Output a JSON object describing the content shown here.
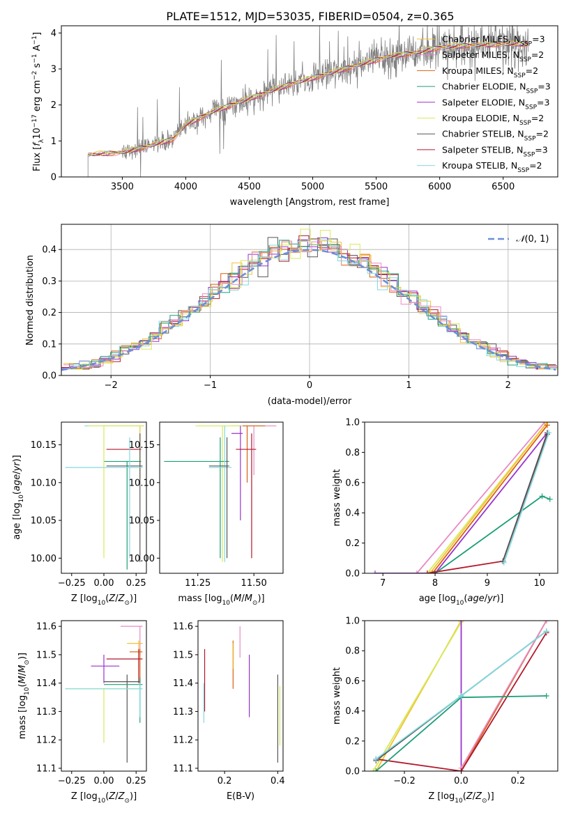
{
  "figure_title": "PLATE=1512, MJD=53035, FIBERID=0504, z=0.365",
  "colors": [
    "#f2c230",
    "#e78ac3",
    "#d95f0e",
    "#1b9e77",
    "#9932cc",
    "#d6e95a",
    "#555555",
    "#b2182b",
    "#80d9e0"
  ],
  "legend_models": [
    {
      "label": "Chabrier MILES, N",
      "nssp": "3"
    },
    {
      "label": "Salpeter MILES, N",
      "nssp": "2"
    },
    {
      "label": "Kroupa MILES, N",
      "nssp": "2"
    },
    {
      "label": "Chabrier ELODIE, N",
      "nssp": "3"
    },
    {
      "label": "Salpeter ELODIE, N",
      "nssp": "3"
    },
    {
      "label": "Kroupa ELODIE, N",
      "nssp": "2"
    },
    {
      "label": "Chabrier STELIB, N",
      "nssp": "2"
    },
    {
      "label": "Salpeter STELIB, N",
      "nssp": "3"
    },
    {
      "label": "Kroupa STELIB, N",
      "nssp": "2"
    }
  ],
  "chart_data": [
    {
      "id": "spectrum",
      "type": "line",
      "xlabel": "wavelength [Angstrom, rest frame]",
      "ylabel": "Flux [f_λ 10^-17 erg cm^-2 s^-1 A^-1]",
      "xlim": [
        3020,
        6930
      ],
      "ylim": [
        0,
        4.2
      ],
      "xticks": [
        3500,
        4000,
        4500,
        5000,
        5500,
        6000,
        6500
      ],
      "yticks": [
        0,
        1,
        2,
        3,
        4
      ],
      "data_color": "#808080",
      "continuum": [
        [
          3230,
          0.62
        ],
        [
          3500,
          0.68
        ],
        [
          3700,
          0.85
        ],
        [
          3900,
          1.05
        ],
        [
          4000,
          1.45
        ],
        [
          4200,
          1.8
        ],
        [
          4400,
          2.05
        ],
        [
          4600,
          2.3
        ],
        [
          4800,
          2.55
        ],
        [
          5000,
          2.75
        ],
        [
          5200,
          2.95
        ],
        [
          5400,
          3.15
        ],
        [
          5600,
          3.35
        ],
        [
          5800,
          3.45
        ],
        [
          6000,
          3.6
        ],
        [
          6200,
          3.65
        ],
        [
          6400,
          3.68
        ],
        [
          6650,
          3.7
        ]
      ],
      "grid": false,
      "legend": "upper-right"
    },
    {
      "id": "residuals",
      "type": "line",
      "xlabel": "(data-model)/error",
      "ylabel": "Normed distribution",
      "xlim": [
        -2.5,
        2.5
      ],
      "ylim": [
        0,
        0.48
      ],
      "xticks": [
        -2,
        -1,
        0,
        1,
        2
      ],
      "yticks": [
        0.0,
        0.1,
        0.2,
        0.3,
        0.4
      ],
      "reference_curve": {
        "name": "N(0,1)",
        "mu": 0,
        "sigma": 1,
        "color": "#6a8fd8"
      },
      "grid": true,
      "legend": "upper-right"
    },
    {
      "id": "age-vs-Z",
      "type": "scatter",
      "xlabel": "Z [log10(Z/Z⊙)]",
      "ylabel": "age  [log10(age/yr)]",
      "xlim": [
        -0.33,
        0.33
      ],
      "ylim": [
        9.98,
        10.18
      ],
      "xticks": [
        -0.25,
        0.0,
        0.25
      ],
      "yticks": [
        10.0,
        10.05,
        10.1,
        10.15
      ],
      "crosses": [
        {
          "x": 0.18,
          "y": 10.175,
          "xlo": -0.15,
          "xhi": 0.3,
          "ylo": 10.175,
          "yhi": 10.175,
          "c": 8
        },
        {
          "x": 0.28,
          "y": 10.175,
          "xlo": 0.0,
          "xhi": 0.31,
          "ylo": 10.105,
          "yhi": 10.175,
          "c": 0
        },
        {
          "x": 0.23,
          "y": 10.144,
          "xlo": 0.02,
          "xhi": 0.29,
          "ylo": 10.144,
          "yhi": 10.144,
          "c": 7
        },
        {
          "x": 0.18,
          "y": 10.128,
          "xlo": 0.0,
          "xhi": 0.29,
          "ylo": 9.985,
          "yhi": 10.128,
          "c": 3
        },
        {
          "x": 0.28,
          "y": 10.122,
          "xlo": 0.02,
          "xhi": 0.3,
          "ylo": 9.995,
          "yhi": 10.165,
          "c": 6
        },
        {
          "x": 0.2,
          "y": 10.12,
          "xlo": -0.3,
          "xhi": 0.3,
          "ylo": 10.0,
          "yhi": 10.16,
          "c": 8
        },
        {
          "x": 0.0,
          "y": 10.175,
          "xlo": -0.12,
          "xhi": 0.3,
          "ylo": 10.0,
          "yhi": 10.175,
          "c": 5
        }
      ]
    },
    {
      "id": "age-vs-mass",
      "type": "scatter",
      "xlabel": "mass [log10(M/M⊙)]",
      "ylabel": "",
      "xlim": [
        11.08,
        11.63
      ],
      "ylim": [
        9.98,
        10.18
      ],
      "xticks": [
        11.25,
        11.5
      ],
      "yticks": [
        10.0,
        10.05,
        10.1,
        10.15
      ],
      "crosses": [
        {
          "x": 11.5,
          "y": 10.175,
          "xlo": 11.4,
          "xhi": 11.6,
          "ylo": 10.11,
          "yhi": 10.175,
          "c": 1
        },
        {
          "x": 11.47,
          "y": 10.175,
          "xlo": 11.45,
          "xhi": 11.55,
          "ylo": 10.1,
          "yhi": 10.175,
          "c": 2
        },
        {
          "x": 11.36,
          "y": 10.175,
          "xlo": 11.24,
          "xhi": 11.45,
          "ylo": 9.995,
          "yhi": 10.175,
          "c": 5
        },
        {
          "x": 11.44,
          "y": 10.165,
          "xlo": 11.4,
          "xhi": 11.45,
          "ylo": 10.05,
          "yhi": 10.175,
          "c": 4
        },
        {
          "x": 11.49,
          "y": 10.144,
          "xlo": 11.42,
          "xhi": 11.51,
          "ylo": 10.0,
          "yhi": 10.165,
          "c": 7
        },
        {
          "x": 11.35,
          "y": 10.128,
          "xlo": 11.1,
          "xhi": 11.39,
          "ylo": 10.0,
          "yhi": 10.16,
          "c": 3
        },
        {
          "x": 11.37,
          "y": 10.12,
          "xlo": 11.3,
          "xhi": 11.4,
          "ylo": 9.995,
          "yhi": 10.175,
          "c": 8
        },
        {
          "x": 11.38,
          "y": 10.122,
          "xlo": 11.3,
          "xhi": 11.39,
          "ylo": 10.0,
          "yhi": 10.16,
          "c": 6
        }
      ]
    },
    {
      "id": "massweight-vs-age",
      "type": "line",
      "xlabel": "age  [log10(age/yr)]",
      "ylabel": "mass weight",
      "xlim": [
        6.65,
        10.35
      ],
      "ylim": [
        0,
        1
      ],
      "xticks": [
        7,
        8,
        9,
        10
      ],
      "yticks": [
        0.0,
        0.2,
        0.4,
        0.6,
        0.8,
        1.0
      ],
      "series": [
        {
          "c": 1,
          "pts": [
            [
              7.65,
              0
            ],
            [
              10.1,
              1.0
            ]
          ]
        },
        {
          "c": 5,
          "pts": [
            [
              7.85,
              0
            ],
            [
              10.15,
              1.0
            ]
          ]
        },
        {
          "c": 0,
          "pts": [
            [
              7.9,
              0
            ],
            [
              10.15,
              1.0
            ]
          ]
        },
        {
          "c": 2,
          "pts": [
            [
              7.95,
              0
            ],
            [
              10.15,
              0.98
            ]
          ]
        },
        {
          "c": 4,
          "pts": [
            [
              6.85,
              0
            ],
            [
              8.0,
              0
            ],
            [
              10.15,
              0.93
            ]
          ]
        },
        {
          "c": 3,
          "pts": [
            [
              8.0,
              0
            ],
            [
              10.05,
              0.51
            ],
            [
              10.2,
              0.49
            ]
          ]
        },
        {
          "c": 7,
          "pts": [
            [
              7.85,
              0
            ],
            [
              9.3,
              0.08
            ],
            [
              10.15,
              0.92
            ]
          ]
        },
        {
          "c": 6,
          "pts": [
            [
              9.3,
              0.08
            ],
            [
              10.15,
              0.93
            ]
          ]
        },
        {
          "c": 8,
          "pts": [
            [
              9.32,
              0.07
            ],
            [
              10.18,
              0.93
            ]
          ]
        }
      ]
    },
    {
      "id": "mass-vs-Z",
      "type": "scatter",
      "xlabel": "Z [log10(Z/Z⊙)]",
      "ylabel": "mass [log10(M/M⊙)]",
      "xlim": [
        -0.33,
        0.33
      ],
      "ylim": [
        11.09,
        11.62
      ],
      "xticks": [
        -0.25,
        0.0,
        0.25
      ],
      "yticks": [
        11.1,
        11.2,
        11.3,
        11.4,
        11.5,
        11.6
      ],
      "crosses": [
        {
          "x": 0.28,
          "y": 11.6,
          "xlo": 0.13,
          "xhi": 0.3,
          "ylo": 11.5,
          "yhi": 11.6,
          "c": 1
        },
        {
          "x": 0.27,
          "y": 11.54,
          "xlo": 0.18,
          "xhi": 0.3,
          "ylo": 11.45,
          "yhi": 11.55,
          "c": 0
        },
        {
          "x": 0.28,
          "y": 11.51,
          "xlo": 0.2,
          "xhi": 0.3,
          "ylo": 11.4,
          "yhi": 11.52,
          "c": 2
        },
        {
          "x": 0.27,
          "y": 11.485,
          "xlo": 0.02,
          "xhi": 0.3,
          "ylo": 11.4,
          "yhi": 11.52,
          "c": 7
        },
        {
          "x": 0.0,
          "y": 11.46,
          "xlo": -0.1,
          "xhi": 0.12,
          "ylo": 11.4,
          "yhi": 11.5,
          "c": 4
        },
        {
          "x": 0.18,
          "y": 11.405,
          "xlo": 0.0,
          "xhi": 0.28,
          "ylo": 11.12,
          "yhi": 11.43,
          "c": 6
        },
        {
          "x": 0.28,
          "y": 11.395,
          "xlo": 0.0,
          "xhi": 0.3,
          "ylo": 11.26,
          "yhi": 11.42,
          "c": 3
        },
        {
          "x": 0.0,
          "y": 11.38,
          "xlo": -0.3,
          "xhi": 0.3,
          "ylo": 11.19,
          "yhi": 11.38,
          "c": 5
        },
        {
          "x": 0.28,
          "y": 11.38,
          "xlo": -0.3,
          "xhi": 0.3,
          "ylo": 11.28,
          "yhi": 11.4,
          "c": 8
        }
      ]
    },
    {
      "id": "mass-vs-EBV",
      "type": "scatter",
      "xlabel": "E(B-V)",
      "ylabel": "",
      "xlim": [
        0.1,
        0.42
      ],
      "ylim": [
        11.09,
        11.62
      ],
      "xticks": [
        0.2,
        0.4
      ],
      "yticks": [
        11.1,
        11.2,
        11.3,
        11.4,
        11.5,
        11.6
      ],
      "bars": [
        {
          "x": 0.125,
          "ylo": 11.3,
          "yhi": 11.52,
          "c": 7
        },
        {
          "x": 0.122,
          "ylo": 11.26,
          "yhi": 11.4,
          "c": 8
        },
        {
          "x": 0.232,
          "ylo": 11.38,
          "yhi": 11.55,
          "c": 2
        },
        {
          "x": 0.233,
          "ylo": 11.45,
          "yhi": 11.54,
          "c": 0
        },
        {
          "x": 0.258,
          "ylo": 11.49,
          "yhi": 11.6,
          "c": 1
        },
        {
          "x": 0.293,
          "ylo": 11.28,
          "yhi": 11.5,
          "c": 4
        },
        {
          "x": 0.4,
          "ylo": 11.12,
          "yhi": 11.43,
          "c": 6
        },
        {
          "x": 0.408,
          "ylo": 11.18,
          "yhi": 11.39,
          "c": 5
        }
      ]
    },
    {
      "id": "massweight-vs-Z",
      "type": "line",
      "xlabel": "Z [log10(Z/Z⊙)]",
      "ylabel": "mass weight",
      "xlim": [
        -0.34,
        0.34
      ],
      "ylim": [
        0,
        1
      ],
      "xticks": [
        -0.2,
        0.0,
        0.2
      ],
      "yticks": [
        0.0,
        0.2,
        0.4,
        0.6,
        0.8,
        1.0
      ],
      "series": [
        {
          "c": 0,
          "pts": [
            [
              -0.3,
              0
            ],
            [
              0.0,
              1.0
            ]
          ]
        },
        {
          "c": 5,
          "pts": [
            [
              -0.31,
              0
            ],
            [
              0.0,
              0.99
            ]
          ]
        },
        {
          "c": 4,
          "pts": [
            [
              0.0,
              1.0
            ],
            [
              0.0,
              0.0
            ]
          ]
        },
        {
          "c": 2,
          "pts": [
            [
              0.0,
              0.0
            ],
            [
              0.3,
              1.0
            ]
          ]
        },
        {
          "c": 1,
          "pts": [
            [
              0.0,
              0.02
            ],
            [
              0.3,
              1.0
            ]
          ]
        },
        {
          "c": 7,
          "pts": [
            [
              -0.3,
              0.08
            ],
            [
              0.0,
              0.0
            ],
            [
              0.3,
              0.92
            ]
          ]
        },
        {
          "c": 3,
          "pts": [
            [
              -0.3,
              0.0
            ],
            [
              0.0,
              0.49
            ],
            [
              0.3,
              0.5
            ]
          ]
        },
        {
          "c": 6,
          "pts": [
            [
              -0.3,
              0.07
            ],
            [
              0.0,
              0.5
            ],
            [
              0.3,
              0.93
            ]
          ]
        },
        {
          "c": 8,
          "pts": [
            [
              -0.3,
              0.08
            ],
            [
              0.0,
              0.5
            ],
            [
              0.3,
              0.93
            ]
          ]
        }
      ]
    }
  ]
}
